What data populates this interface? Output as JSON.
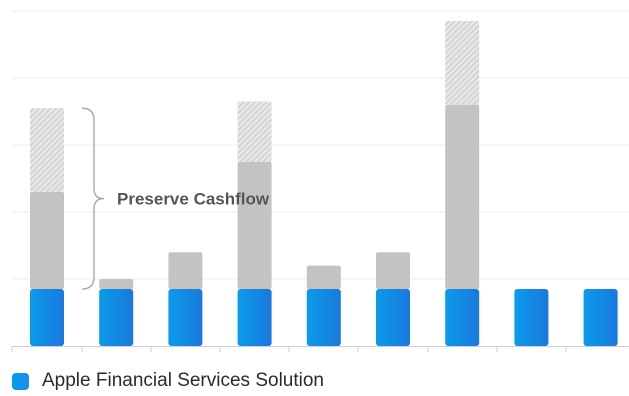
{
  "chart_data": {
    "type": "bar",
    "stacked": true,
    "categories": [
      "",
      "",
      "",
      "",
      "",
      "",
      "",
      "",
      ""
    ],
    "ylim": [
      0,
      5
    ],
    "grid": true,
    "legend_position": "bottom-left",
    "series": [
      {
        "name": "Apple Financial Services Solution",
        "color": "#1a8ef0",
        "values": [
          0.85,
          0.85,
          0.85,
          0.85,
          0.85,
          0.85,
          0.85,
          0.85,
          0.85
        ]
      },
      {
        "color": "#c3c3c3",
        "values": [
          1.45,
          0.15,
          0.55,
          1.9,
          0.35,
          0.55,
          2.75,
          0,
          0
        ]
      },
      {
        "color": "#dcdcdc",
        "pattern": "hatched",
        "values": [
          1.25,
          0,
          0,
          0.9,
          0,
          0,
          1.25,
          0,
          0
        ]
      }
    ],
    "annotation": {
      "text": "Preserve Cashflow",
      "type": "brace",
      "target_category_index": 0
    }
  }
}
